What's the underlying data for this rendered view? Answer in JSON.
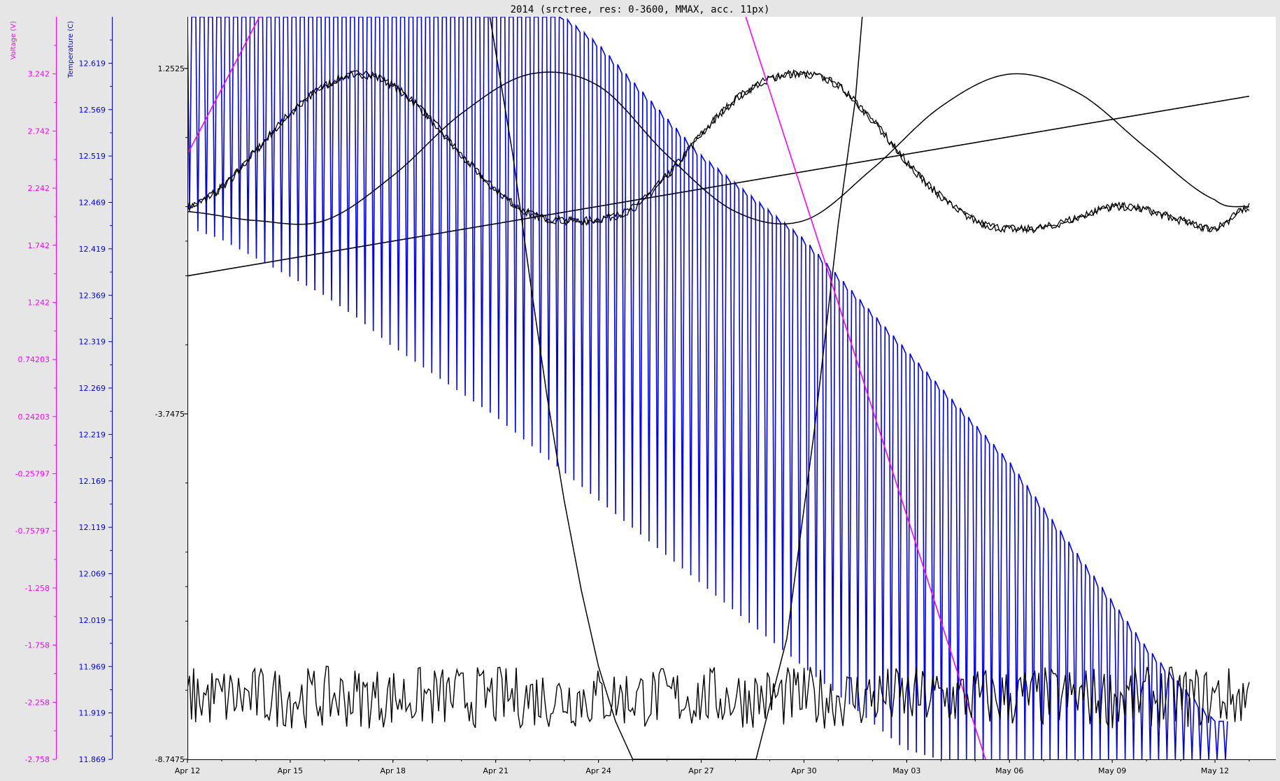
{
  "chart_data": {
    "type": "line",
    "title": "2014 (srctree, res: 0-3600, MMAX, acc. 11px)",
    "colors": {
      "background": "#e6e6e6",
      "plot_background": "#ffffff",
      "voltage": "#ff00ff",
      "temperature": "#0000ff",
      "primary": "#000000"
    },
    "x_axis": {
      "range": [
        0,
        31
      ],
      "tick_values": [
        0,
        3,
        6,
        9,
        12,
        15,
        18,
        21,
        24,
        27,
        30
      ],
      "tick_labels": [
        "Apr 12",
        "Apr 15",
        "Apr 18",
        "Apr 21",
        "Apr 24",
        "Apr 27",
        "Apr 30",
        "May 03",
        "May 06",
        "May 09",
        "May 12"
      ]
    },
    "axes": {
      "voltage": {
        "title": "Voltage (V)",
        "range": [
          -2.758,
          3.742
        ],
        "tick_labels": [
          "-2.758",
          "-2.258",
          "-1.758",
          "-1.258",
          "-0.75797",
          "-0.25797",
          "0.24203",
          "0.74203",
          "1.242",
          "1.742",
          "2.242",
          "2.742",
          "3.242"
        ]
      },
      "temperature": {
        "title": "Temperature (C)",
        "range": [
          11.869,
          12.669
        ],
        "tick_labels": [
          "11.869",
          "11.919",
          "11.969",
          "12.019",
          "12.069",
          "12.119",
          "12.169",
          "12.219",
          "12.269",
          "12.319",
          "12.369",
          "12.419",
          "12.469",
          "12.519",
          "12.569",
          "12.619"
        ]
      },
      "primary": {
        "range": [
          -8.7475,
          2.0
        ],
        "tick_labels": [
          "-8.7475",
          "-3.7475",
          "1.2525"
        ]
      }
    },
    "series": [
      {
        "name": "noisy-sine",
        "axis": "primary",
        "color": "#000000",
        "x": [
          0,
          1,
          2,
          3,
          4,
          5,
          6,
          7,
          8,
          9,
          10,
          11,
          12,
          13,
          14,
          15,
          16,
          17,
          18,
          19,
          20,
          21,
          22,
          23,
          24,
          25,
          26,
          27,
          28,
          29,
          30,
          31
        ],
        "y": [
          -0.75,
          -0.47,
          0.06,
          0.6,
          1.0,
          1.17,
          1.0,
          0.57,
          0.0,
          -0.5,
          -0.85,
          -0.95,
          -0.93,
          -0.77,
          -0.3,
          0.3,
          0.8,
          1.1,
          1.17,
          1.0,
          0.5,
          -0.1,
          -0.6,
          -0.95,
          -1.07,
          -1.05,
          -0.9,
          -0.75,
          -0.8,
          -0.95,
          -1.05,
          -0.75
        ]
      },
      {
        "name": "smooth-sine",
        "axis": "primary",
        "color": "#000000",
        "x": [
          0,
          2,
          4,
          6,
          8,
          10,
          12,
          14,
          16,
          18,
          20,
          22,
          24,
          26,
          28,
          30,
          31
        ],
        "y": [
          -0.82,
          -0.95,
          -0.95,
          -0.3,
          0.6,
          1.17,
          1.0,
          0.0,
          -0.82,
          -0.95,
          -0.2,
          0.7,
          1.17,
          0.9,
          0.1,
          -0.65,
          -0.75
        ]
      },
      {
        "name": "linear-trend",
        "axis": "primary",
        "color": "#000000",
        "x": [
          0,
          31
        ],
        "y": [
          -1.75,
          0.85
        ]
      },
      {
        "name": "steep-curve",
        "axis": "primary",
        "color": "#000000",
        "x": [
          8.83,
          9.5,
          10.0,
          10.5,
          11.0,
          11.5,
          12.0,
          12.5,
          13.0,
          13.7,
          14.3,
          15.0,
          15.7,
          16.6,
          17.5,
          18.3,
          19.0,
          19.5,
          19.7
        ],
        "y": [
          2.0,
          0.0,
          -1.8,
          -3.5,
          -5.0,
          -6.3,
          -7.4,
          -8.2,
          -8.7475,
          -8.7475,
          -8.7475,
          -8.7475,
          -8.7475,
          -8.7475,
          -7.0,
          -4.0,
          -1.0,
          0.8,
          2.0
        ]
      },
      {
        "name": "temperature-oscillation",
        "axis": "temperature",
        "color": "#0000ff",
        "x": [
          0,
          0.2,
          1,
          2,
          3,
          4,
          5,
          6,
          7,
          8,
          9,
          10,
          11,
          12,
          13,
          14,
          15,
          16,
          17,
          18,
          19,
          20,
          21,
          22,
          23,
          24,
          25,
          26,
          27,
          28,
          29,
          30
        ],
        "lower_envelope": [
          12.49,
          12.44,
          12.43,
          12.41,
          12.39,
          12.37,
          12.345,
          12.315,
          12.29,
          12.265,
          12.24,
          12.21,
          12.18,
          12.15,
          12.12,
          12.09,
          12.06,
          12.03,
          12.0,
          11.97,
          11.94,
          11.91,
          11.88,
          11.869,
          11.869,
          11.869,
          11.869,
          11.869,
          11.869,
          11.869,
          11.869,
          11.869
        ],
        "upper_envelope": [
          12.669,
          12.669,
          12.669,
          12.669,
          12.669,
          12.669,
          12.669,
          12.669,
          12.669,
          12.669,
          12.669,
          12.669,
          12.669,
          12.64,
          12.6,
          12.56,
          12.52,
          12.49,
          12.46,
          12.43,
          12.39,
          12.35,
          12.31,
          12.27,
          12.23,
          12.19,
          12.14,
          12.09,
          12.04,
          11.99,
          11.95,
          11.91
        ],
        "cycles_per_day": 4.1
      },
      {
        "name": "voltage-line",
        "axis": "voltage",
        "color": "#ff00ff",
        "segments": [
          {
            "x": [
              0,
              2.1
            ],
            "y": [
              2.54,
              3.742
            ]
          },
          {
            "x": [
              16.3,
              23.3
            ],
            "y": [
              3.742,
              -2.758
            ]
          }
        ]
      },
      {
        "name": "noise-band",
        "axis": "primary",
        "color": "#000000",
        "x_range": [
          0,
          31
        ],
        "y_range": [
          -8.3,
          -7.4
        ],
        "approx_points": 520
      }
    ]
  }
}
